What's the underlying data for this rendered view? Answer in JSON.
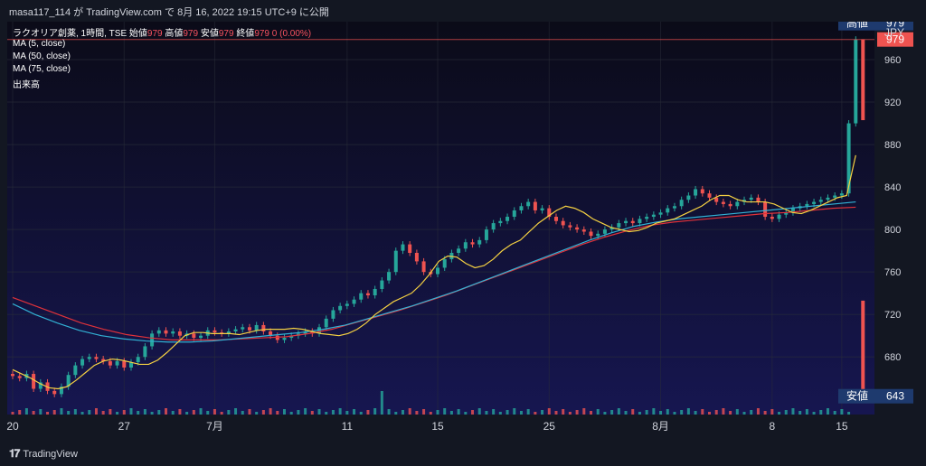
{
  "header": {
    "publisher": "masa117_114 が TradingView.com で 8月 16, 2022 19:15 UTC+9 に公開"
  },
  "legend": {
    "symbol": "ラクオリア創薬, 1時間, TSE",
    "open_label": "始値",
    "open": "979",
    "high_label": "高値",
    "high": "979",
    "low_label": "安値",
    "low": "979",
    "close_label": "終値",
    "close": "979",
    "change": "0 (0.00%)",
    "ma5": "MA (5, close)",
    "ma50": "MA (50, close)",
    "ma75": "MA (75, close)",
    "volume": "出来高"
  },
  "footer": {
    "brand": "TradingView"
  },
  "colors": {
    "background": "#131722",
    "grid": "#2a2e39",
    "up": "#26a69a",
    "down": "#ef5350",
    "ma5": "#f5d142",
    "ma50": "#32b1d4",
    "ma75": "#e0323a",
    "high_line": "#ef5350",
    "label_bg": "#1e3a6e"
  },
  "chart_data": {
    "type": "candlestick",
    "currency": "JPY",
    "ylim": [
      630,
      1000
    ],
    "y_ticks": [
      680,
      720,
      760,
      800,
      840,
      880,
      920,
      960
    ],
    "x_ticks": [
      "20",
      "27",
      "7月",
      "11",
      "15",
      "25",
      "8月",
      "8",
      "15"
    ],
    "price_labels": {
      "high_label": "高値",
      "high": 979,
      "low_label": "安値",
      "low": 643,
      "last": 979
    },
    "candles_close": [
      662,
      660,
      664,
      650,
      656,
      648,
      645,
      652,
      663,
      672,
      678,
      680,
      678,
      676,
      672,
      676,
      670,
      675,
      680,
      690,
      702,
      705,
      702,
      704,
      700,
      702,
      698,
      700,
      705,
      703,
      702,
      704,
      706,
      708,
      705,
      710,
      704,
      700,
      696,
      698,
      700,
      702,
      704,
      702,
      708,
      716,
      724,
      728,
      730,
      734,
      740,
      738,
      744,
      752,
      760,
      780,
      786,
      778,
      770,
      760,
      758,
      764,
      772,
      778,
      782,
      788,
      786,
      790,
      800,
      806,
      808,
      812,
      818,
      822,
      826,
      818,
      820,
      812,
      808,
      804,
      802,
      800,
      798,
      794,
      796,
      800,
      802,
      806,
      808,
      806,
      810,
      812,
      814,
      816,
      820,
      822,
      828,
      832,
      838,
      834,
      830,
      826,
      824,
      822,
      826,
      828,
      830,
      826,
      812,
      810,
      814,
      816,
      820,
      822,
      824,
      826,
      828,
      830,
      832,
      834,
      900,
      979
    ],
    "ma5": [
      668,
      664,
      660,
      655,
      651,
      650,
      652,
      658,
      665,
      672,
      676,
      678,
      677,
      675,
      673,
      673,
      677,
      684,
      692,
      700,
      703,
      703,
      702,
      702,
      702,
      701,
      703,
      705,
      706,
      706,
      706,
      707,
      706,
      704,
      702,
      701,
      700,
      702,
      706,
      712,
      720,
      726,
      732,
      736,
      740,
      748,
      758,
      770,
      775,
      774,
      768,
      764,
      766,
      772,
      780,
      786,
      790,
      798,
      806,
      812,
      818,
      822,
      820,
      816,
      810,
      806,
      802,
      800,
      798,
      799,
      802,
      806,
      808,
      810,
      814,
      818,
      822,
      828,
      832,
      832,
      828,
      826,
      826,
      826,
      824,
      820,
      816,
      815,
      818,
      822,
      826,
      830,
      832,
      870
    ],
    "ma50": [
      730,
      720,
      712,
      705,
      700,
      697,
      695,
      694,
      694,
      695,
      697,
      699,
      701,
      703,
      706,
      710,
      716,
      722,
      728,
      735,
      742,
      750,
      758,
      766,
      774,
      782,
      790,
      797,
      803,
      807,
      810,
      812,
      814,
      816,
      818,
      820,
      822,
      824,
      826
    ],
    "ma75": [
      736,
      728,
      720,
      712,
      706,
      701,
      698,
      696,
      696,
      696,
      697,
      698,
      699,
      702,
      706,
      712,
      718,
      724,
      731,
      738,
      746,
      754,
      762,
      770,
      778,
      786,
      793,
      799,
      804,
      807,
      809,
      811,
      813,
      815,
      816,
      818,
      820,
      821
    ]
  }
}
